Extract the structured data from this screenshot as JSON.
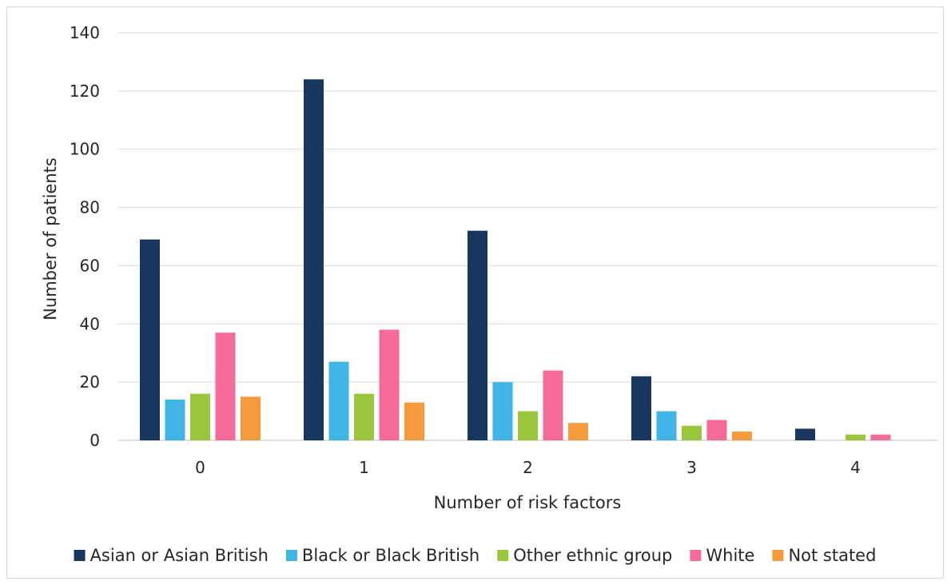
{
  "chart_data": {
    "type": "bar",
    "title": "",
    "xlabel": "Number of risk factors",
    "ylabel": "Number of patients",
    "categories": [
      "0",
      "1",
      "2",
      "3",
      "4"
    ],
    "ylim": [
      0,
      140
    ],
    "yticks": [
      0,
      20,
      40,
      60,
      80,
      100,
      120,
      140
    ],
    "grid": true,
    "legend_position": "bottom",
    "series": [
      {
        "name": "Asian or Asian British",
        "color": "#17375e",
        "values": [
          69,
          124,
          72,
          22,
          4
        ]
      },
      {
        "name": "Black or Black British",
        "color": "#41b6e6",
        "values": [
          14,
          27,
          20,
          10,
          0
        ]
      },
      {
        "name": "Other ethnic group",
        "color": "#9bc53d",
        "values": [
          16,
          16,
          10,
          5,
          2
        ]
      },
      {
        "name": "White",
        "color": "#f46a9b",
        "values": [
          37,
          38,
          24,
          7,
          2
        ]
      },
      {
        "name": "Not stated",
        "color": "#f79a3e",
        "values": [
          15,
          13,
          6,
          3,
          0
        ]
      }
    ]
  }
}
